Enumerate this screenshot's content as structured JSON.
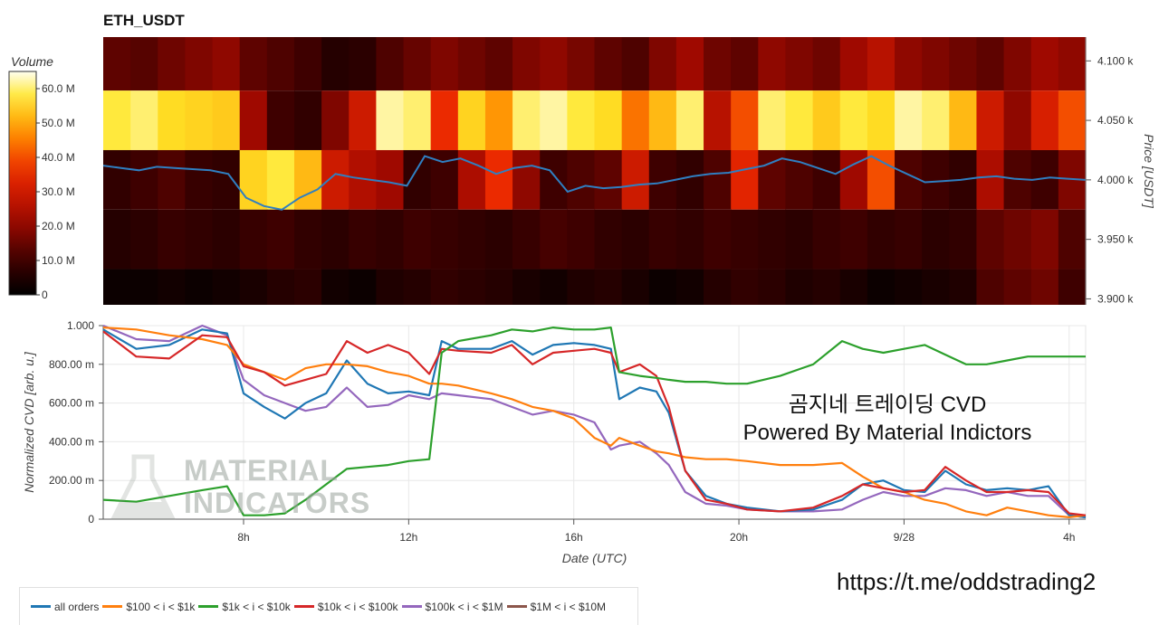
{
  "chart_data": [
    {
      "type": "heatmap",
      "title": "ETH_USDT",
      "colorbar_label": "Volume",
      "colorbar_ticks": [
        "0",
        "10.0 M",
        "20.0 M",
        "30.0 M",
        "40.0 M",
        "50.0 M",
        "60.0 M"
      ],
      "colorbar_range": [
        0,
        65
      ],
      "ylabel": "Price [USDT]",
      "y_ticks": [
        "3.900 k",
        "3.950 k",
        "4.000 k",
        "4.050 k",
        "4.100 k"
      ],
      "ylim": [
        3895,
        4120
      ],
      "price_bands": [
        {
          "lo": 4075,
          "hi": 4120,
          "level": [
            14,
            13,
            16,
            18,
            20,
            14,
            12,
            10,
            6,
            7,
            12,
            15,
            18,
            16,
            14,
            18,
            20,
            17,
            14,
            12,
            18,
            22,
            16,
            14,
            20,
            18,
            16,
            22,
            26,
            20,
            18,
            16,
            14,
            18,
            22,
            20
          ]
        },
        {
          "lo": 4025,
          "hi": 4075,
          "level": [
            58,
            60,
            56,
            55,
            54,
            22,
            10,
            8,
            18,
            30,
            62,
            60,
            36,
            55,
            48,
            60,
            62,
            58,
            56,
            44,
            52,
            60,
            26,
            40,
            60,
            58,
            54,
            58,
            56,
            62,
            60,
            52,
            30,
            20,
            32,
            40
          ]
        },
        {
          "lo": 3975,
          "hi": 4025,
          "level": [
            8,
            10,
            12,
            9,
            8,
            55,
            58,
            52,
            30,
            25,
            22,
            8,
            10,
            24,
            36,
            20,
            10,
            12,
            14,
            30,
            10,
            8,
            12,
            34,
            14,
            12,
            10,
            22,
            40,
            12,
            10,
            8,
            24,
            12,
            10,
            18
          ]
        },
        {
          "lo": 3925,
          "hi": 3975,
          "level": [
            6,
            7,
            9,
            8,
            7,
            9,
            10,
            8,
            7,
            9,
            8,
            10,
            9,
            8,
            7,
            9,
            11,
            10,
            8,
            7,
            9,
            8,
            10,
            9,
            8,
            7,
            9,
            10,
            8,
            9,
            7,
            8,
            14,
            16,
            18,
            12
          ]
        },
        {
          "lo": 3895,
          "hi": 3925,
          "level": [
            2,
            2,
            3,
            2,
            3,
            4,
            6,
            7,
            3,
            2,
            5,
            6,
            8,
            7,
            6,
            4,
            3,
            5,
            6,
            4,
            2,
            3,
            6,
            8,
            7,
            5,
            6,
            4,
            2,
            3,
            4,
            5,
            12,
            14,
            16,
            10
          ]
        }
      ],
      "price_line": [
        4012,
        4010,
        4008,
        4011,
        4010,
        4009,
        4008,
        4005,
        3985,
        3978,
        3975,
        3985,
        3992,
        4005,
        4002,
        4000,
        3998,
        3995,
        4020,
        4015,
        4018,
        4012,
        4005,
        4010,
        4012,
        4008,
        3990,
        3995,
        3993,
        3994,
        3996,
        3997,
        4000,
        4003,
        4005,
        4006,
        4009,
        4012,
        4018,
        4015,
        4010,
        4005,
        4013,
        4020,
        4012,
        4005,
        3998,
        3999,
        4000,
        4002,
        4003,
        4001,
        4000,
        4002,
        4001,
        4000
      ]
    },
    {
      "type": "line",
      "xlabel": "Date (UTC)",
      "ylabel": "Normalized CVD [arb. u.]",
      "x_ticks": [
        "8h",
        "12h",
        "16h",
        "20h",
        "9/28",
        "4h"
      ],
      "x_tick_hours": [
        8,
        12,
        16,
        20,
        24,
        28
      ],
      "xlim": [
        4.6,
        28.4
      ],
      "y_ticks": [
        "0",
        "200.00 m",
        "400.00 m",
        "600.00 m",
        "800.00 m",
        "1.000"
      ],
      "ylim": [
        0,
        1.0
      ],
      "x_hours": [
        4.6,
        5.4,
        6.2,
        7.0,
        7.6,
        8.0,
        8.5,
        9.0,
        9.5,
        10.0,
        10.5,
        11.0,
        11.5,
        12.0,
        12.5,
        12.8,
        13.2,
        14.0,
        14.5,
        15.0,
        15.5,
        16.0,
        16.5,
        16.9,
        17.1,
        17.6,
        18.0,
        18.3,
        18.7,
        19.2,
        19.7,
        20.2,
        21.0,
        21.8,
        22.5,
        23.0,
        23.5,
        24.0,
        24.5,
        25.0,
        25.5,
        26.0,
        26.5,
        27.0,
        27.5,
        28.0,
        28.4
      ],
      "series": [
        {
          "name": "all orders",
          "color": "#1f77b4",
          "values": [
            0.98,
            0.88,
            0.9,
            0.98,
            0.96,
            0.65,
            0.58,
            0.52,
            0.6,
            0.65,
            0.82,
            0.7,
            0.65,
            0.66,
            0.64,
            0.92,
            0.88,
            0.88,
            0.92,
            0.85,
            0.9,
            0.91,
            0.9,
            0.88,
            0.62,
            0.68,
            0.66,
            0.55,
            0.25,
            0.12,
            0.08,
            0.06,
            0.04,
            0.05,
            0.1,
            0.18,
            0.2,
            0.15,
            0.14,
            0.25,
            0.18,
            0.15,
            0.16,
            0.15,
            0.17,
            0.02,
            0.01
          ]
        },
        {
          "name": "$100 < i < $1k",
          "color": "#ff7f0e",
          "values": [
            0.99,
            0.98,
            0.95,
            0.93,
            0.9,
            0.8,
            0.76,
            0.72,
            0.78,
            0.8,
            0.8,
            0.79,
            0.76,
            0.74,
            0.7,
            0.7,
            0.69,
            0.65,
            0.62,
            0.58,
            0.56,
            0.52,
            0.42,
            0.38,
            0.42,
            0.38,
            0.35,
            0.34,
            0.32,
            0.31,
            0.31,
            0.3,
            0.28,
            0.28,
            0.29,
            0.22,
            0.16,
            0.14,
            0.1,
            0.08,
            0.04,
            0.02,
            0.06,
            0.04,
            0.02,
            0.01,
            0.02
          ]
        },
        {
          "name": "$1k < i < $10k",
          "color": "#2ca02c",
          "values": [
            0.1,
            0.09,
            0.12,
            0.15,
            0.17,
            0.02,
            0.02,
            0.03,
            0.1,
            0.18,
            0.26,
            0.27,
            0.28,
            0.3,
            0.31,
            0.86,
            0.92,
            0.95,
            0.98,
            0.97,
            0.99,
            0.98,
            0.98,
            0.99,
            0.76,
            0.74,
            0.73,
            0.72,
            0.71,
            0.71,
            0.7,
            0.7,
            0.74,
            0.8,
            0.92,
            0.88,
            0.86,
            0.88,
            0.9,
            0.85,
            0.8,
            0.8,
            0.82,
            0.84,
            0.84,
            0.84,
            0.84
          ]
        },
        {
          "name": "$10k < i < $100k",
          "color": "#d62728",
          "values": [
            0.97,
            0.84,
            0.83,
            0.95,
            0.94,
            0.79,
            0.76,
            0.69,
            0.72,
            0.75,
            0.92,
            0.86,
            0.9,
            0.86,
            0.75,
            0.88,
            0.87,
            0.86,
            0.9,
            0.8,
            0.86,
            0.87,
            0.88,
            0.86,
            0.76,
            0.8,
            0.74,
            0.58,
            0.25,
            0.1,
            0.08,
            0.05,
            0.04,
            0.06,
            0.12,
            0.18,
            0.16,
            0.14,
            0.15,
            0.27,
            0.2,
            0.14,
            0.14,
            0.15,
            0.14,
            0.03,
            0.02
          ]
        },
        {
          "name": "$100k < i < $1M",
          "color": "#9467bd",
          "values": [
            1.0,
            0.93,
            0.92,
            1.0,
            0.95,
            0.72,
            0.64,
            0.6,
            0.56,
            0.58,
            0.68,
            0.58,
            0.59,
            0.64,
            0.62,
            0.65,
            0.64,
            0.62,
            0.58,
            0.54,
            0.56,
            0.54,
            0.5,
            0.36,
            0.38,
            0.4,
            0.34,
            0.28,
            0.14,
            0.08,
            0.07,
            0.05,
            0.04,
            0.04,
            0.05,
            0.1,
            0.14,
            0.12,
            0.12,
            0.16,
            0.15,
            0.12,
            0.14,
            0.12,
            0.12,
            0.02,
            0.01
          ]
        },
        {
          "name": "$1M < i < $10M",
          "color": "#8c564b",
          "values": []
        }
      ]
    }
  ],
  "annotation_lines": [
    "곰지네 트레이딩 CVD",
    "Powered By Material Indictors"
  ],
  "url": "https://t.me/oddstrading2",
  "watermark": [
    "MATERIAL",
    "INDICATORS"
  ]
}
